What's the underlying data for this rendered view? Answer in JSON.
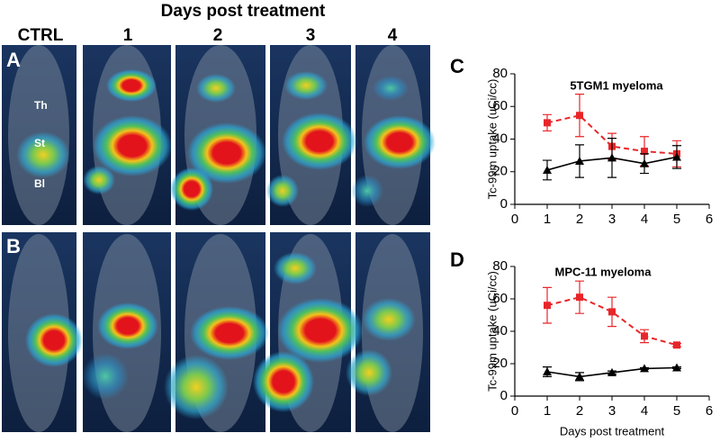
{
  "figure": {
    "title": "Days post treatment",
    "columns": [
      "CTRL",
      "1",
      "2",
      "3",
      "4"
    ],
    "rows": [
      "A",
      "B"
    ],
    "organs": [
      "Th",
      "St",
      "Bl"
    ]
  },
  "chart_data": [
    {
      "type": "line",
      "panel": "C",
      "title": "5TGM1 myeloma",
      "y_label": "Tc-99m uptake (uCi/cc)",
      "x": [
        1,
        2,
        3,
        4,
        5
      ],
      "xlim": [
        0,
        6
      ],
      "xticks": [
        0,
        1,
        2,
        3,
        4,
        5,
        6
      ],
      "ylim": [
        0,
        80
      ],
      "yticks": [
        0,
        20,
        40,
        60,
        80
      ],
      "series": [
        {
          "color": "#e8262a",
          "marker": "square",
          "dashed": true,
          "values": [
            50,
            54.5,
            35.5,
            32.5,
            31
          ],
          "errors": [
            5,
            13,
            8,
            9,
            8
          ]
        },
        {
          "color": "#000000",
          "marker": "triangle",
          "dashed": false,
          "values": [
            21,
            26.5,
            28.5,
            25,
            29
          ],
          "errors": [
            6,
            10,
            12,
            6,
            7
          ]
        }
      ]
    },
    {
      "type": "line",
      "panel": "D",
      "title": "MPC-11 myeloma",
      "y_label": "Tc-99m uptake (uCi/cc)",
      "x_label": "Days post treatment",
      "x": [
        1,
        2,
        3,
        4,
        5
      ],
      "xlim": [
        0,
        6
      ],
      "xticks": [
        0,
        1,
        2,
        3,
        4,
        5,
        6
      ],
      "ylim": [
        0,
        80
      ],
      "yticks": [
        0,
        20,
        40,
        60,
        80
      ],
      "series": [
        {
          "color": "#e8262a",
          "marker": "square",
          "dashed": true,
          "values": [
            56,
            61,
            52,
            37,
            31.5
          ],
          "errors": [
            11,
            10,
            9,
            4,
            1
          ]
        },
        {
          "color": "#000000",
          "marker": "triangle",
          "dashed": false,
          "values": [
            15,
            12,
            14.5,
            17,
            17.5
          ],
          "errors": [
            3,
            2.5,
            1,
            0.5,
            0.5
          ]
        }
      ]
    }
  ]
}
